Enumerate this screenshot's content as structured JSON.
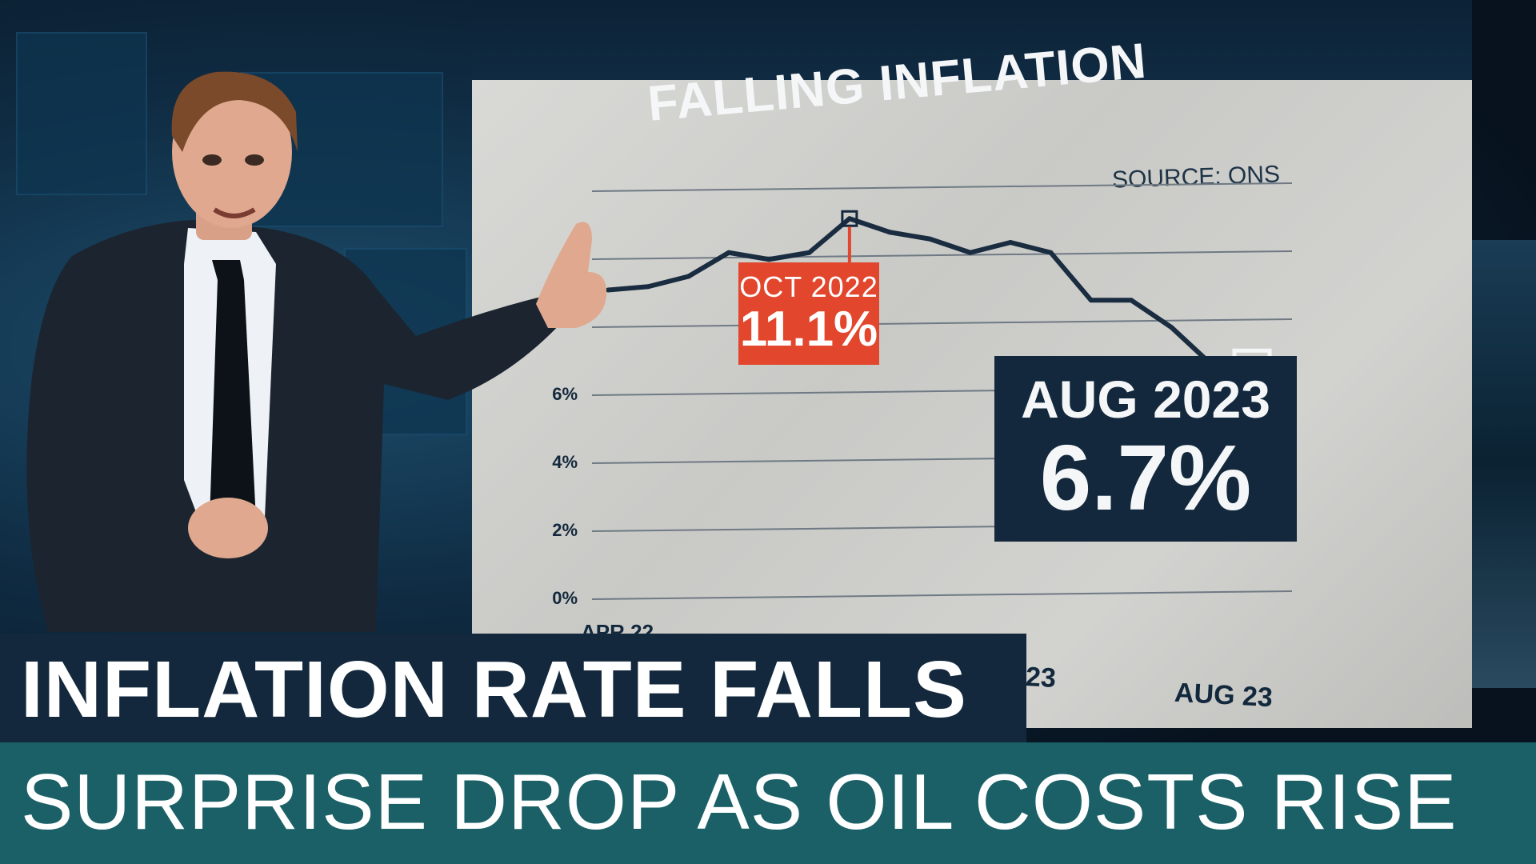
{
  "chart_title": "FALLING INFLATION",
  "chart_source": "SOURCE: ONS",
  "chart_data": {
    "type": "line",
    "title": "FALLING INFLATION",
    "y_ticks": [
      "0%",
      "2%",
      "4%",
      "6%"
    ],
    "ylim": [
      0,
      12
    ],
    "x_tick_labels_visible": [
      "APR 22",
      "23",
      "AUG 23"
    ],
    "x": [
      "Apr 2022",
      "May 2022",
      "Jun 2022",
      "Jul 2022",
      "Aug 2022",
      "Sep 2022",
      "Oct 2022",
      "Nov 2022",
      "Dec 2022",
      "Jan 2023",
      "Feb 2023",
      "Mar 2023",
      "Apr 2023",
      "May 2023",
      "Jun 2023",
      "Jul 2023",
      "Aug 2023"
    ],
    "values": [
      9.0,
      9.1,
      9.4,
      10.1,
      9.9,
      10.1,
      11.1,
      10.7,
      10.5,
      10.1,
      10.4,
      10.1,
      8.7,
      8.7,
      7.9,
      6.8,
      6.7
    ],
    "annotations": [
      {
        "label": "OCT 2022",
        "value": "11.1%"
      },
      {
        "label": "AUG 2023",
        "value": "6.7%"
      }
    ],
    "colors": {
      "line": "#1a2c40",
      "highlight_peak": "#e2462c",
      "highlight_latest": "#13283c"
    }
  },
  "x_labels": [
    "APR 22",
    "23",
    "AUG 23"
  ],
  "callout_peak": {
    "date": "OCT 2022",
    "value": "11.1%"
  },
  "callout_latest": {
    "date": "AUG 2023",
    "value": "6.7%"
  },
  "lower_third": {
    "headline": "INFLATION RATE FALLS",
    "subheadline": "SURPRISE DROP AS OIL COSTS RISE"
  },
  "colors": {
    "headline_bg": "#13283c",
    "subline_bg": "#1a6066",
    "accent_red": "#e2462c"
  }
}
